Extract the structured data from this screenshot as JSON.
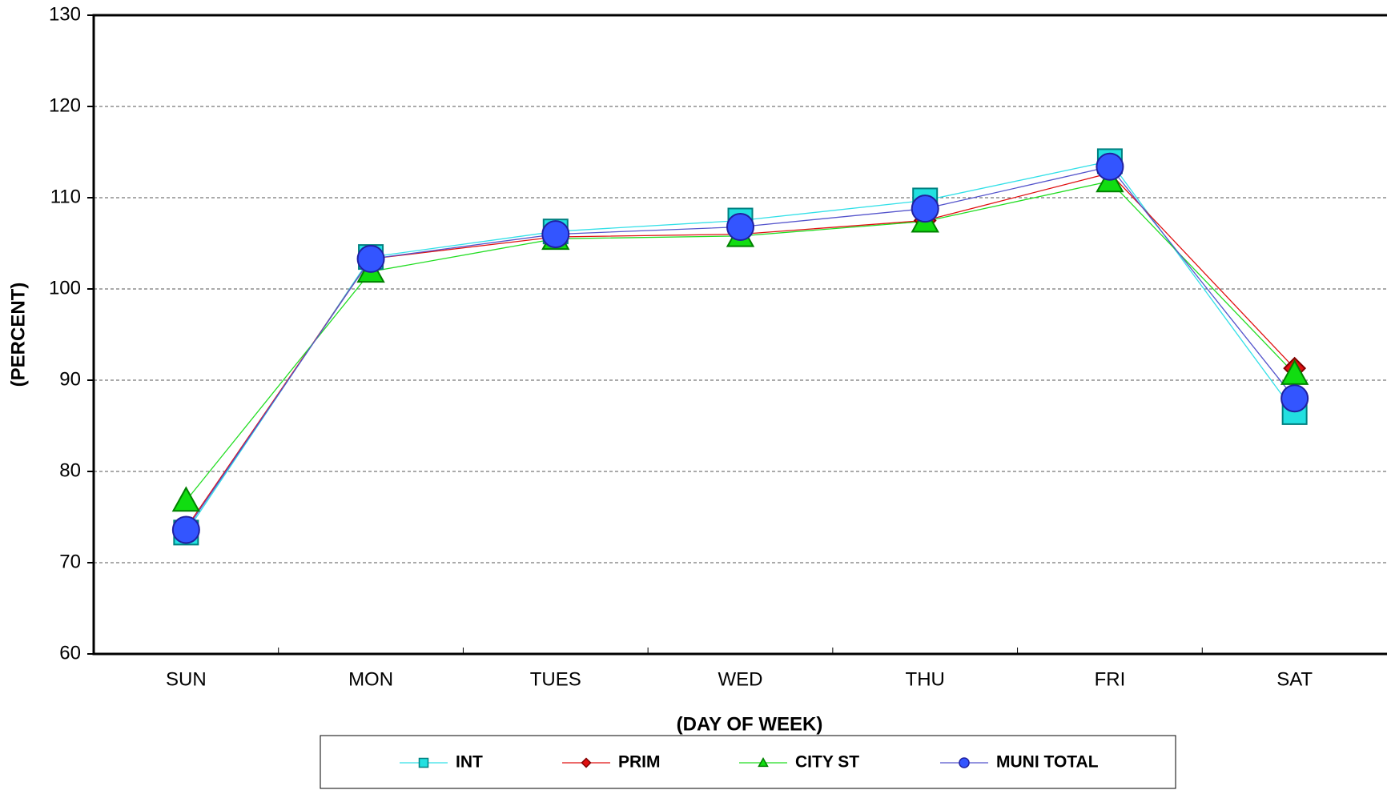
{
  "chart_data": {
    "type": "line",
    "xlabel": "(DAY OF WEEK)",
    "ylabel": "(PERCENT)",
    "categories": [
      "SUN",
      "MON",
      "TUES",
      "WED",
      "THU",
      "FRI",
      "SAT"
    ],
    "series": [
      {
        "name": "INT",
        "color": "#33e0e8",
        "marker": "square",
        "marker_fill": "#22e0e0",
        "marker_stroke": "#008080",
        "values": [
          73.3,
          103.5,
          106.3,
          107.5,
          109.7,
          114.0,
          86.5
        ]
      },
      {
        "name": "PRIM",
        "color": "#e01010",
        "marker": "diamond",
        "marker_fill": "#e01010",
        "marker_stroke": "#800000",
        "values": [
          73.8,
          103.3,
          105.7,
          106.0,
          107.5,
          112.7,
          91.3
        ]
      },
      {
        "name": "CITY ST",
        "color": "#22dd22",
        "marker": "triangle",
        "marker_fill": "#11dd11",
        "marker_stroke": "#008000",
        "values": [
          76.8,
          101.9,
          105.5,
          105.8,
          107.4,
          111.8,
          90.7
        ]
      },
      {
        "name": "MUNI TOTAL",
        "color": "#5555cc",
        "marker": "circle",
        "marker_fill": "#3355ff",
        "marker_stroke": "#2020a0",
        "values": [
          73.6,
          103.3,
          106.0,
          106.8,
          108.8,
          113.4,
          88.0
        ]
      }
    ],
    "ylim": [
      60,
      130
    ],
    "yticks": [
      60,
      70,
      80,
      90,
      100,
      110,
      120,
      130
    ],
    "grid": true,
    "legend": "bottom"
  }
}
